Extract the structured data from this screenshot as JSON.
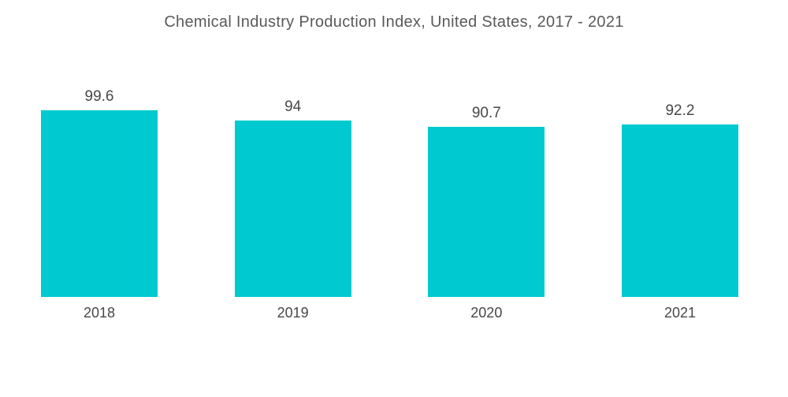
{
  "chart_data": {
    "type": "bar",
    "title": "Chemical Industry Production Index, United States, 2017 - 2021",
    "categories": [
      "2018",
      "2019",
      "2020",
      "2021"
    ],
    "values": [
      99.6,
      94,
      90.7,
      92.2
    ],
    "value_labels": [
      "99.6",
      "94",
      "90.7",
      "92.2"
    ],
    "xlabel": "",
    "ylabel": "",
    "ylim": [
      0,
      99.6
    ],
    "grid": "off",
    "axes": "hidden",
    "legend": "none",
    "colors": {
      "bar": "#00CACF",
      "title_text": "#5a5a5a",
      "label_text": "#474747",
      "background": "#ffffff"
    }
  }
}
